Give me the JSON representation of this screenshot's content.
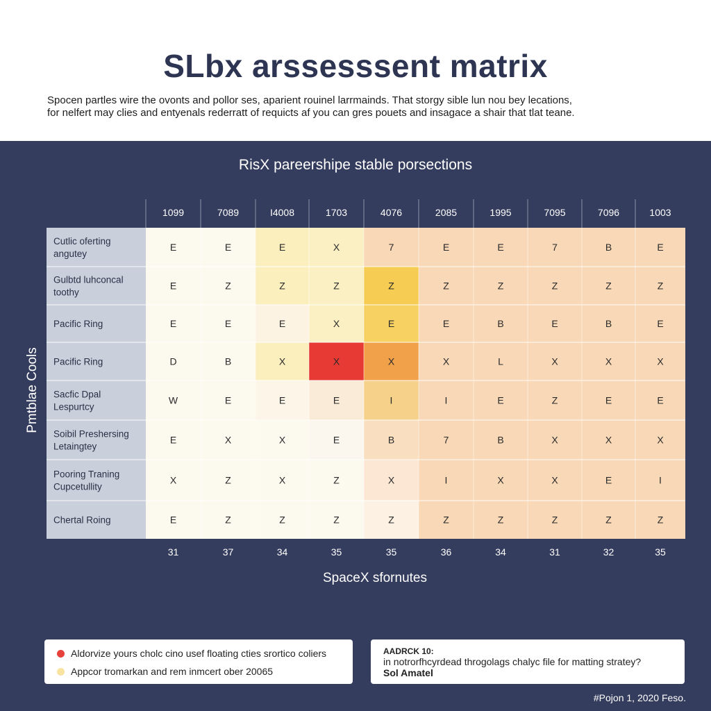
{
  "header": {
    "title": "SLbx arssesssent matrix",
    "subtitle_line1": "Spocen partles wire the ovonts and pollor ses, aparient rouinel larrmainds. That storgy sible lun nou bey lecations,",
    "subtitle_line2": "for nelfert may clies and  entyenals rederratt of requicts af you can gres pouets and insagace a shair that tlat teane."
  },
  "chart_data": {
    "type": "heatmap",
    "title": "RisX pareershipe stable porsections",
    "xlabel": "SpaceX sfornutes",
    "ylabel": "Pmtblae Cools",
    "columns": [
      "1099",
      "7089",
      "I4008",
      "1703",
      "4076",
      "2085",
      "1995",
      "7095",
      "7096",
      "1003"
    ],
    "rows": [
      "Cutlic oferting angutey",
      "Gulbtd luhconcal toothy",
      "Pacific Ring",
      "Pacific Ring",
      "Sacfic Dpal Lespurtcy",
      "Soibil Preshersing Letaingtey",
      "Pooring Traning Cupcetullity",
      "Chertal Roing"
    ],
    "cells": [
      [
        "E",
        "E",
        "E",
        "X",
        "7",
        "E",
        "E",
        "7",
        "B",
        "E"
      ],
      [
        "E",
        "Z",
        "Z",
        "Z",
        "Z",
        "Z",
        "Z",
        "Z",
        "Z",
        "Z"
      ],
      [
        "E",
        "E",
        "E",
        "X",
        "E",
        "E",
        "B",
        "E",
        "B",
        "E"
      ],
      [
        "D",
        "B",
        "X",
        "X",
        "X",
        "X",
        "L",
        "X",
        "X",
        "X"
      ],
      [
        "W",
        "E",
        "E",
        "E",
        "I",
        "I",
        "E",
        "Z",
        "E",
        "E"
      ],
      [
        "E",
        "X",
        "X",
        "E",
        "B",
        "7",
        "B",
        "X",
        "X",
        "X"
      ],
      [
        "X",
        "Z",
        "X",
        "Z",
        "X",
        "I",
        "X",
        "X",
        "E",
        "I"
      ],
      [
        "E",
        "Z",
        "Z",
        "Z",
        "Z",
        "Z",
        "Z",
        "Z",
        "Z",
        "Z"
      ]
    ],
    "colors": [
      [
        "#fcf9ef",
        "#fcf9ef",
        "#fbefbe",
        "#fbf0c4",
        "#f8d8b6",
        "#f8d8b6",
        "#f8d8b6",
        "#f8d8b6",
        "#f8d8b6",
        "#f8d8b6"
      ],
      [
        "#fcf9ef",
        "#fcf9ef",
        "#fbefbe",
        "#fbf0c4",
        "#f7cc52",
        "#f8d8b6",
        "#f8d8b6",
        "#f8d8b6",
        "#f8d8b6",
        "#f8d8b6"
      ],
      [
        "#fcf9ef",
        "#fcf9ef",
        "#fcf3e2",
        "#fbf0c4",
        "#f7d161",
        "#f8d8b6",
        "#f8d8b6",
        "#f8d8b6",
        "#f8d8b6",
        "#f8d8b6"
      ],
      [
        "#fcf9ef",
        "#fcf9ef",
        "#fbefbe",
        "#e83a34",
        "#f1a14a",
        "#f8d8b6",
        "#f8d8b6",
        "#f8d8b6",
        "#f8d8b6",
        "#f8d8b6"
      ],
      [
        "#fcf9ef",
        "#fcf9ef",
        "#fcf5e8",
        "#faebd8",
        "#f6d18a",
        "#f8d8b6",
        "#f8d8b6",
        "#f8d8b6",
        "#f8d8b6",
        "#f8d8b6"
      ],
      [
        "#fcf9ef",
        "#fcf9ef",
        "#fcf9ef",
        "#fcf7ee",
        "#f9dfc0",
        "#f8d8b6",
        "#f8d8b6",
        "#f8d8b6",
        "#f8d8b6",
        "#f8d8b6"
      ],
      [
        "#fcf9ef",
        "#fcf9ef",
        "#fcf9ef",
        "#fcf9ef",
        "#fbe7d3",
        "#f8d8b6",
        "#f8d8b6",
        "#f8d8b6",
        "#f8d8b6",
        "#f8d8b6"
      ],
      [
        "#fcf9ef",
        "#fcf9ef",
        "#fcf9ef",
        "#fcf9ef",
        "#fcf1e2",
        "#f8d8b6",
        "#f8d8b6",
        "#f8d8b6",
        "#f8d8b6",
        "#f8d8b6"
      ]
    ],
    "totals": [
      31,
      37,
      34,
      35,
      35,
      36,
      34,
      31,
      32,
      35
    ],
    "row_label_bg": "#c9d0dc",
    "panel_color": "#353d5e"
  },
  "legend": {
    "items": [
      {
        "label": "Aldorvize yours cholc cino usef floating cties srortico coliers",
        "color": "#e8413b"
      },
      {
        "label": "Appcor tromarkan and rem inmcert ober 20065",
        "color": "#f8e3a0"
      }
    ]
  },
  "note": {
    "heading": "AADRCK 10:",
    "question": "in notrorfhcyrdead throgolags chalyc file for matting stratey?",
    "answer": "Sol Amatel"
  },
  "footer": {
    "text": "#Pojon 1, 2020 Feso."
  }
}
